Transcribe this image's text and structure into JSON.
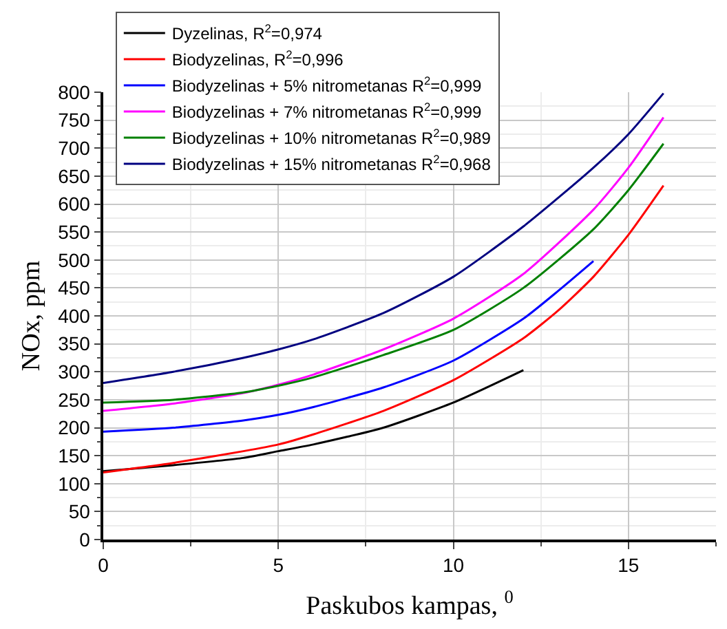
{
  "chart_data": {
    "type": "line",
    "xlabel": "Paskubos kampas, $^{0}$",
    "ylabel": "NOx, ppm",
    "xlim": [
      0,
      17.5
    ],
    "xticks": [
      0,
      5,
      10,
      15
    ],
    "ylim": [
      0,
      800
    ],
    "yticks": [
      0,
      50,
      100,
      150,
      200,
      250,
      300,
      350,
      400,
      450,
      500,
      550,
      600,
      650,
      700,
      750,
      800
    ],
    "grid": true,
    "legend": "top left",
    "marker": "none",
    "line_style": "solid",
    "series": [
      {
        "name": "Dyzelinas, R$^{2}$=0,974",
        "color": "#000000",
        "x": [
          0,
          2,
          4,
          5,
          6,
          8,
          10,
          12
        ],
        "values": [
          122,
          133,
          146,
          158,
          170,
          200,
          245,
          303
        ]
      },
      {
        "name": "Biodyzelinas, R$^{2}$=0,996",
        "color": "#ff0000",
        "x": [
          0,
          2,
          4,
          5,
          6,
          8,
          10,
          12,
          13,
          14,
          15,
          16
        ],
        "values": [
          120,
          137,
          158,
          170,
          188,
          230,
          285,
          360,
          410,
          470,
          545,
          633
        ]
      },
      {
        "name": "Biodyzelinas + 5% nitrometanas R$^{2}$=0,999",
        "color": "#0000ff",
        "x": [
          0,
          2,
          4,
          5,
          6,
          8,
          10,
          12,
          13,
          14
        ],
        "values": [
          193,
          200,
          213,
          223,
          237,
          272,
          320,
          395,
          445,
          498
        ]
      },
      {
        "name": "Biodyzelinas + 7% nitrometanas R$^{2}$=0,999",
        "color": "#ff00ff",
        "x": [
          0,
          2,
          4,
          5,
          6,
          8,
          10,
          12,
          14,
          15,
          16
        ],
        "values": [
          230,
          243,
          262,
          277,
          295,
          340,
          395,
          475,
          590,
          665,
          755
        ]
      },
      {
        "name": "Biodyzelinas + 10% nitrometanas R$^{2}$=0,989",
        "color": "#008000",
        "x": [
          0,
          2,
          4,
          5,
          6,
          8,
          10,
          12,
          14,
          15,
          16
        ],
        "values": [
          245,
          250,
          263,
          275,
          290,
          330,
          375,
          450,
          555,
          625,
          708
        ]
      },
      {
        "name": "Biodyzelinas + 15% nitrometanas R$^{2}$=0,968",
        "color": "#000080",
        "x": [
          0,
          2,
          4,
          5,
          6,
          8,
          10,
          12,
          14,
          15,
          16
        ],
        "values": [
          280,
          300,
          325,
          340,
          358,
          405,
          470,
          560,
          665,
          725,
          798
        ]
      }
    ]
  }
}
